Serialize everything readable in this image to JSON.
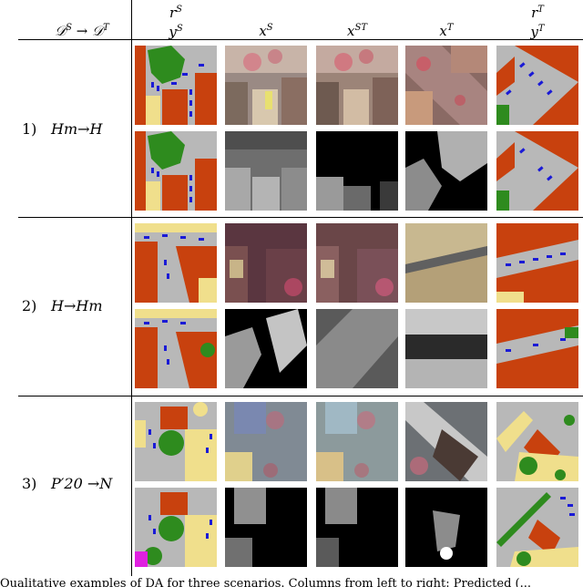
{
  "header": {
    "domain_col": {
      "main": "𝒟",
      "sup1": "S",
      "arrow": " → ",
      "main2": "𝒟",
      "sup2": "T"
    },
    "col_rs": {
      "r": "r",
      "r_sup": "S",
      "y": "y",
      "y_sup": "S"
    },
    "col_xs": {
      "x": "x",
      "sup": "S"
    },
    "col_xst": {
      "x": "x",
      "sup": "ST"
    },
    "col_xt": {
      "x": "x",
      "sup": "T"
    },
    "col_rt": {
      "r": "r",
      "r_sup": "T",
      "y": "y",
      "y_sup": "T"
    }
  },
  "rows": [
    {
      "num": "1)",
      "label": "Hm→H"
    },
    {
      "num": "2)",
      "label": "H→Hm"
    },
    {
      "num": "3)",
      "label": "P′20 →N"
    }
  ],
  "caption": "Qualitative examples of DA for three scenarios. Columns from left to right: Predicted (...",
  "colors": {
    "road": "#b8b8b8",
    "building": "#c8410e",
    "vegetation": "#2e8b1e",
    "car": "#1a1ad6",
    "ground": "#f0df8c",
    "clutter": "#e020e0"
  }
}
